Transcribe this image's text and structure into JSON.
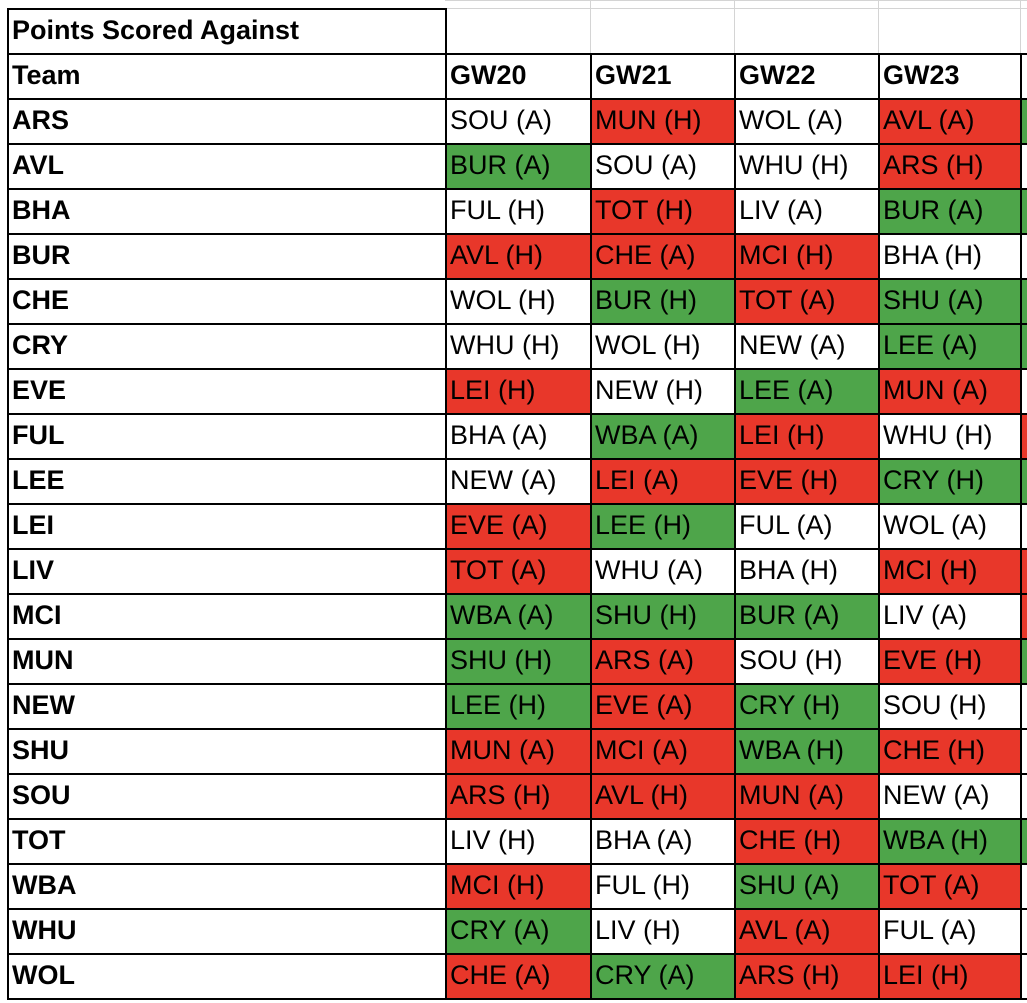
{
  "title": "Points Scored Against",
  "colors": {
    "good": "#4ea54a",
    "bad": "#e8372a",
    "neutral": "#ffffff"
  },
  "header": {
    "team": "Team",
    "gameweeks": [
      "GW20",
      "GW21",
      "GW22",
      "GW23"
    ]
  },
  "rows": [
    {
      "team": "ARS",
      "fixtures": [
        {
          "t": "SOU (A)",
          "c": "w"
        },
        {
          "t": "MUN (H)",
          "c": "r"
        },
        {
          "t": "WOL (A)",
          "c": "w"
        },
        {
          "t": "AVL (A)",
          "c": "r"
        }
      ],
      "next_col": "g"
    },
    {
      "team": "AVL",
      "fixtures": [
        {
          "t": "BUR (A)",
          "c": "g"
        },
        {
          "t": "SOU (A)",
          "c": "w"
        },
        {
          "t": "WHU (H)",
          "c": "w"
        },
        {
          "t": "ARS (H)",
          "c": "r"
        }
      ],
      "next_col": "w"
    },
    {
      "team": "BHA",
      "fixtures": [
        {
          "t": "FUL (H)",
          "c": "w"
        },
        {
          "t": "TOT (H)",
          "c": "r"
        },
        {
          "t": "LIV (A)",
          "c": "w"
        },
        {
          "t": "BUR (A)",
          "c": "g"
        }
      ],
      "next_col": "g"
    },
    {
      "team": "BUR",
      "fixtures": [
        {
          "t": "AVL (H)",
          "c": "r"
        },
        {
          "t": "CHE (A)",
          "c": "r"
        },
        {
          "t": "MCI (H)",
          "c": "r"
        },
        {
          "t": "BHA (H)",
          "c": "w"
        }
      ],
      "next_col": "w"
    },
    {
      "team": "CHE",
      "fixtures": [
        {
          "t": "WOL (H)",
          "c": "w"
        },
        {
          "t": "BUR (H)",
          "c": "g"
        },
        {
          "t": "TOT (A)",
          "c": "r"
        },
        {
          "t": "SHU (A)",
          "c": "g"
        }
      ],
      "next_col": "g"
    },
    {
      "team": "CRY",
      "fixtures": [
        {
          "t": "WHU (H)",
          "c": "w"
        },
        {
          "t": "WOL (H)",
          "c": "w"
        },
        {
          "t": "NEW (A)",
          "c": "w"
        },
        {
          "t": "LEE (A)",
          "c": "g"
        }
      ],
      "next_col": "g"
    },
    {
      "team": "EVE",
      "fixtures": [
        {
          "t": "LEI (H)",
          "c": "r"
        },
        {
          "t": "NEW (H)",
          "c": "w"
        },
        {
          "t": "LEE (A)",
          "c": "g"
        },
        {
          "t": "MUN (A)",
          "c": "r"
        }
      ],
      "next_col": "w"
    },
    {
      "team": "FUL",
      "fixtures": [
        {
          "t": "BHA (A)",
          "c": "w"
        },
        {
          "t": "WBA (A)",
          "c": "g"
        },
        {
          "t": "LEI (H)",
          "c": "r"
        },
        {
          "t": "WHU (H)",
          "c": "w"
        }
      ],
      "next_col": "r"
    },
    {
      "team": "LEE",
      "fixtures": [
        {
          "t": "NEW (A)",
          "c": "w"
        },
        {
          "t": "LEI (A)",
          "c": "r"
        },
        {
          "t": "EVE (H)",
          "c": "r"
        },
        {
          "t": "CRY (H)",
          "c": "g"
        }
      ],
      "next_col": "g"
    },
    {
      "team": "LEI",
      "fixtures": [
        {
          "t": "EVE (A)",
          "c": "r"
        },
        {
          "t": "LEE (H)",
          "c": "g"
        },
        {
          "t": "FUL (A)",
          "c": "w"
        },
        {
          "t": "WOL (A)",
          "c": "w"
        }
      ],
      "next_col": "w"
    },
    {
      "team": "LIV",
      "fixtures": [
        {
          "t": "TOT (A)",
          "c": "r"
        },
        {
          "t": "WHU (A)",
          "c": "w"
        },
        {
          "t": "BHA (H)",
          "c": "w"
        },
        {
          "t": "MCI (H)",
          "c": "r"
        }
      ],
      "next_col": "r"
    },
    {
      "team": "MCI",
      "fixtures": [
        {
          "t": "WBA (A)",
          "c": "g"
        },
        {
          "t": "SHU (H)",
          "c": "g"
        },
        {
          "t": "BUR (A)",
          "c": "g"
        },
        {
          "t": "LIV (A)",
          "c": "w"
        }
      ],
      "next_col": "r"
    },
    {
      "team": "MUN",
      "fixtures": [
        {
          "t": "SHU (H)",
          "c": "g"
        },
        {
          "t": "ARS (A)",
          "c": "r"
        },
        {
          "t": "SOU (H)",
          "c": "w"
        },
        {
          "t": "EVE (H)",
          "c": "r"
        }
      ],
      "next_col": "g"
    },
    {
      "team": "NEW",
      "fixtures": [
        {
          "t": "LEE (H)",
          "c": "g"
        },
        {
          "t": "EVE (A)",
          "c": "r"
        },
        {
          "t": "CRY (H)",
          "c": "g"
        },
        {
          "t": "SOU (H)",
          "c": "w"
        }
      ],
      "next_col": "w"
    },
    {
      "team": "SHU",
      "fixtures": [
        {
          "t": "MUN (A)",
          "c": "r"
        },
        {
          "t": "MCI (A)",
          "c": "r"
        },
        {
          "t": "WBA (H)",
          "c": "g"
        },
        {
          "t": "CHE (H)",
          "c": "r"
        }
      ],
      "next_col": "w"
    },
    {
      "team": "SOU",
      "fixtures": [
        {
          "t": "ARS (H)",
          "c": "r"
        },
        {
          "t": "AVL (H)",
          "c": "r"
        },
        {
          "t": "MUN (A)",
          "c": "r"
        },
        {
          "t": "NEW (A)",
          "c": "w"
        }
      ],
      "next_col": "w"
    },
    {
      "team": "TOT",
      "fixtures": [
        {
          "t": "LIV (H)",
          "c": "w"
        },
        {
          "t": "BHA (A)",
          "c": "w"
        },
        {
          "t": "CHE (H)",
          "c": "r"
        },
        {
          "t": "WBA (H)",
          "c": "g"
        }
      ],
      "next_col": "g"
    },
    {
      "team": "WBA",
      "fixtures": [
        {
          "t": "MCI (H)",
          "c": "r"
        },
        {
          "t": "FUL (H)",
          "c": "w"
        },
        {
          "t": "SHU (A)",
          "c": "g"
        },
        {
          "t": "TOT (A)",
          "c": "r"
        }
      ],
      "next_col": "w"
    },
    {
      "team": "WHU",
      "fixtures": [
        {
          "t": "CRY (A)",
          "c": "g"
        },
        {
          "t": "LIV (H)",
          "c": "w"
        },
        {
          "t": "AVL (A)",
          "c": "r"
        },
        {
          "t": "FUL (A)",
          "c": "w"
        }
      ],
      "next_col": "w"
    },
    {
      "team": "WOL",
      "fixtures": [
        {
          "t": "CHE (A)",
          "c": "r"
        },
        {
          "t": "CRY (A)",
          "c": "g"
        },
        {
          "t": "ARS (H)",
          "c": "r"
        },
        {
          "t": "LEI (H)",
          "c": "r"
        }
      ],
      "next_col": "w"
    }
  ]
}
